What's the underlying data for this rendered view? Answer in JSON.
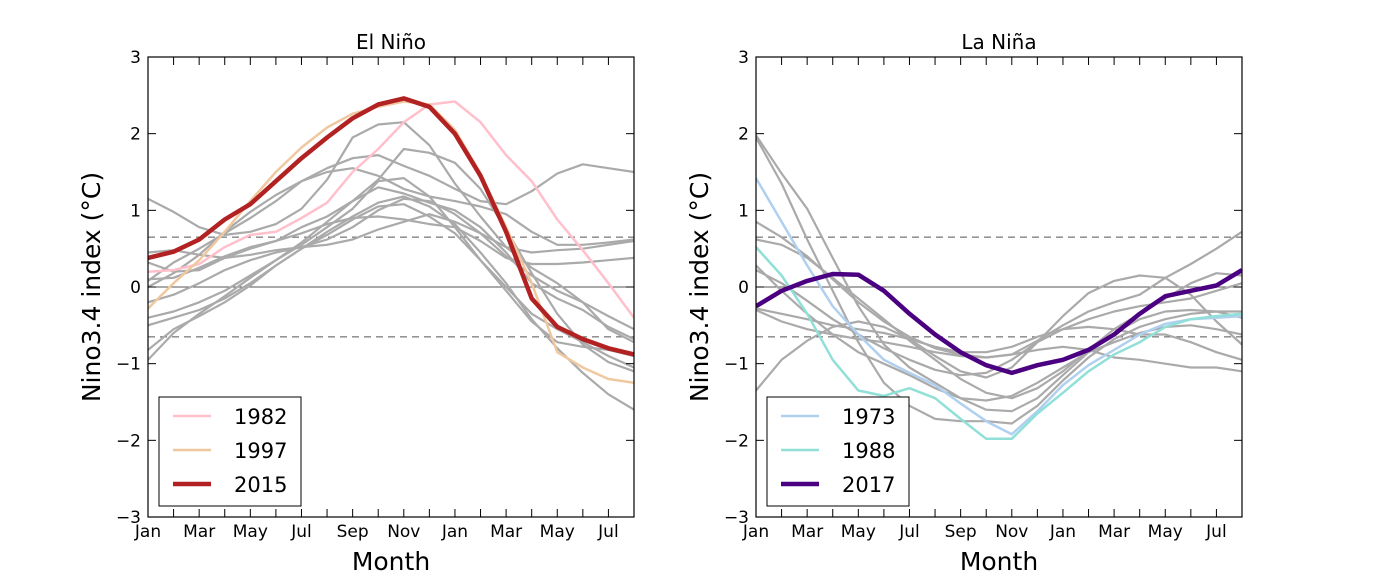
{
  "chart_data": [
    {
      "type": "line",
      "title": "El Niño",
      "xlabel": "Month",
      "ylabel": "Nino3.4 index (°C)",
      "ylim": [
        -3,
        3
      ],
      "xlim": [
        0,
        19
      ],
      "x_tick_labels": [
        "Jan",
        "Mar",
        "May",
        "Jul",
        "Sep",
        "Nov",
        "Jan",
        "Mar",
        "May",
        "Jul"
      ],
      "y_tick_labels": [
        "3",
        "2",
        "1",
        "0",
        "−1",
        "−2",
        "−3"
      ],
      "y_tick_values": [
        3,
        2,
        1,
        0,
        -1,
        -2,
        -3
      ],
      "reference_lines": {
        "zero": 0,
        "thresholds": [
          0.65,
          -0.65
        ]
      },
      "grid": false,
      "legend_position": "lower-left",
      "background_color": "#aaaaaa",
      "series": [
        {
          "name": "1982",
          "color": "#ffc0cb",
          "emphasis": "thin",
          "values": [
            0.2,
            0.22,
            0.3,
            0.52,
            0.68,
            0.72,
            0.9,
            1.1,
            1.5,
            1.8,
            2.15,
            2.38,
            2.42,
            2.15,
            1.72,
            1.38,
            0.88,
            0.48,
            0.05,
            -0.4
          ]
        },
        {
          "name": "1997",
          "color": "#f0c8a0",
          "emphasis": "thin",
          "values": [
            -0.28,
            0.05,
            0.35,
            0.72,
            1.12,
            1.5,
            1.82,
            2.08,
            2.26,
            2.35,
            2.42,
            2.38,
            2.05,
            1.48,
            0.78,
            0.05,
            -0.85,
            -1.05,
            -1.2,
            -1.25
          ]
        },
        {
          "name": "2015",
          "color": "#b22222",
          "emphasis": "bold",
          "values": [
            0.38,
            0.46,
            0.62,
            0.88,
            1.08,
            1.38,
            1.68,
            1.95,
            2.2,
            2.38,
            2.46,
            2.35,
            2.0,
            1.45,
            0.72,
            -0.15,
            -0.52,
            -0.68,
            -0.8,
            -0.88
          ]
        }
      ],
      "background_series": [
        [
          1.15,
          0.98,
          0.78,
          0.68,
          0.72,
          0.82,
          1.02,
          1.4,
          1.95,
          2.12,
          2.15,
          1.85,
          1.35,
          0.92,
          0.52,
          0.25,
          0.05,
          -0.2,
          -0.55,
          -0.72
        ],
        [
          0.08,
          0.32,
          0.5,
          0.7,
          0.9,
          1.12,
          1.38,
          1.55,
          1.68,
          1.72,
          1.58,
          1.45,
          1.28,
          1.12,
          1.08,
          1.25,
          1.48,
          1.6,
          1.55,
          1.5
        ],
        [
          -0.95,
          -0.6,
          -0.35,
          -0.12,
          0.12,
          0.35,
          0.58,
          0.85,
          1.12,
          1.4,
          1.8,
          1.75,
          1.62,
          1.28,
          0.75,
          0.18,
          -0.35,
          -0.75,
          -0.98,
          -1.1
        ],
        [
          0.0,
          0.18,
          0.42,
          0.72,
          0.98,
          1.2,
          1.38,
          1.5,
          1.55,
          1.45,
          1.28,
          1.18,
          1.12,
          1.05,
          0.95,
          0.72,
          0.55,
          0.55,
          0.58,
          0.62
        ],
        [
          -0.5,
          -0.4,
          -0.3,
          -0.15,
          0.05,
          0.28,
          0.5,
          0.72,
          0.92,
          1.1,
          1.18,
          1.05,
          0.82,
          0.45,
          0.05,
          -0.42,
          -0.8,
          -1.12,
          -1.4,
          -1.6
        ],
        [
          -0.2,
          -0.1,
          0.05,
          0.22,
          0.35,
          0.45,
          0.52,
          0.62,
          0.78,
          1.0,
          1.15,
          1.12,
          0.95,
          0.7,
          0.4,
          0.15,
          -0.05,
          -0.2,
          -0.38,
          -0.55
        ],
        [
          0.32,
          0.2,
          0.22,
          0.38,
          0.5,
          0.6,
          0.7,
          0.82,
          0.9,
          0.92,
          0.88,
          0.82,
          0.78,
          0.6,
          0.38,
          0.3,
          0.3,
          0.32,
          0.35,
          0.38
        ],
        [
          -0.4,
          -0.32,
          -0.2,
          -0.05,
          0.15,
          0.35,
          0.55,
          0.78,
          1.02,
          1.38,
          1.42,
          1.18,
          0.78,
          0.35,
          0.0,
          -0.35,
          -0.55,
          -0.72,
          -0.9,
          -1.05
        ],
        [
          0.1,
          0.12,
          0.25,
          0.4,
          0.52,
          0.6,
          0.78,
          0.92,
          1.12,
          1.3,
          1.22,
          1.1,
          1.0,
          0.78,
          0.45,
          0.05,
          -0.15,
          -0.3,
          -0.52,
          -0.68
        ],
        [
          -0.82,
          -0.55,
          -0.38,
          -0.2,
          0.02,
          0.28,
          0.5,
          0.68,
          0.88,
          1.05,
          1.08,
          0.92,
          0.7,
          0.35,
          -0.05,
          -0.45,
          -0.72,
          -0.78,
          -0.82,
          -0.9
        ],
        [
          0.45,
          0.48,
          0.42,
          0.38,
          0.42,
          0.48,
          0.52,
          0.55,
          0.62,
          0.75,
          0.85,
          0.95,
          0.85,
          0.7,
          0.52,
          0.45,
          0.48,
          0.5,
          0.55,
          0.6
        ]
      ]
    },
    {
      "type": "line",
      "title": "La Niña",
      "xlabel": "Month",
      "ylabel": "Nino3.4 index (°C)",
      "ylim": [
        -3,
        3
      ],
      "xlim": [
        0,
        19
      ],
      "x_tick_labels": [
        "Jan",
        "Mar",
        "May",
        "Jul",
        "Sep",
        "Nov",
        "Jan",
        "Mar",
        "May",
        "Jul"
      ],
      "y_tick_labels": [
        "3",
        "2",
        "1",
        "0",
        "−1",
        "−2",
        "−3"
      ],
      "y_tick_values": [
        3,
        2,
        1,
        0,
        -1,
        -2,
        -3
      ],
      "reference_lines": {
        "zero": 0,
        "thresholds": [
          0.65,
          -0.65
        ]
      },
      "grid": false,
      "legend_position": "lower-left",
      "background_color": "#aaaaaa",
      "series": [
        {
          "name": "1973",
          "color": "#b0d0f0",
          "emphasis": "thin",
          "values": [
            1.42,
            0.85,
            0.28,
            -0.25,
            -0.62,
            -0.95,
            -1.12,
            -1.28,
            -1.52,
            -1.75,
            -1.92,
            -1.62,
            -1.28,
            -1.02,
            -0.82,
            -0.62,
            -0.48,
            -0.42,
            -0.4,
            -0.38
          ]
        },
        {
          "name": "1988",
          "color": "#90e0d8",
          "emphasis": "thin",
          "values": [
            0.52,
            0.15,
            -0.35,
            -0.95,
            -1.35,
            -1.42,
            -1.32,
            -1.45,
            -1.72,
            -1.98,
            -1.98,
            -1.65,
            -1.38,
            -1.1,
            -0.88,
            -0.72,
            -0.52,
            -0.42,
            -0.38,
            -0.35
          ]
        },
        {
          "name": "2017",
          "color": "#4b0082",
          "emphasis": "bold",
          "values": [
            -0.25,
            -0.05,
            0.08,
            0.17,
            0.16,
            -0.05,
            -0.35,
            -0.62,
            -0.85,
            -1.02,
            -1.12,
            -1.02,
            -0.95,
            -0.82,
            -0.62,
            -0.35,
            -0.12,
            -0.05,
            0.02,
            0.22
          ]
        }
      ],
      "background_series": [
        [
          1.95,
          1.35,
          0.62,
          -0.05,
          -0.72,
          -1.25,
          -1.55,
          -1.72,
          -1.75,
          -1.75,
          -1.78,
          -1.55,
          -1.22,
          -0.92,
          -0.68,
          -0.52,
          -0.42,
          -0.35,
          -0.32,
          -0.32
        ],
        [
          1.98,
          1.48,
          1.02,
          0.38,
          -0.25,
          -0.75,
          -1.05,
          -1.25,
          -1.45,
          -1.6,
          -1.62,
          -1.45,
          -1.15,
          -0.85,
          -0.6,
          -0.42,
          -0.32,
          -0.3,
          -0.32,
          -0.4
        ],
        [
          0.85,
          0.65,
          0.4,
          0.1,
          -0.2,
          -0.45,
          -0.65,
          -0.8,
          -0.88,
          -0.92,
          -0.88,
          -0.7,
          -0.5,
          -0.32,
          -0.2,
          -0.1,
          0.12,
          0.3,
          0.5,
          0.72
        ],
        [
          0.62,
          0.55,
          0.38,
          0.12,
          -0.15,
          -0.42,
          -0.7,
          -0.95,
          -1.2,
          -1.38,
          -1.45,
          -1.32,
          -1.1,
          -0.82,
          -0.55,
          -0.35,
          -0.15,
          0.05,
          0.18,
          0.15
        ],
        [
          -1.35,
          -0.95,
          -0.7,
          -0.52,
          -0.45,
          -0.52,
          -0.68,
          -0.9,
          -1.1,
          -1.18,
          -1.05,
          -0.72,
          -0.38,
          -0.08,
          0.08,
          0.15,
          0.12,
          -0.1,
          -0.45,
          -0.75
        ],
        [
          -0.28,
          -0.35,
          -0.42,
          -0.5,
          -0.55,
          -0.6,
          -0.68,
          -0.78,
          -0.85,
          -0.85,
          -0.78,
          -0.65,
          -0.55,
          -0.52,
          -0.55,
          -0.62,
          -0.62,
          -0.72,
          -0.85,
          -0.95
        ],
        [
          0.28,
          -0.05,
          -0.35,
          -0.62,
          -0.85,
          -1.0,
          -1.15,
          -1.32,
          -1.45,
          -1.48,
          -1.42,
          -1.25,
          -1.05,
          -0.85,
          -0.72,
          -0.6,
          -0.52,
          -0.5,
          -0.55,
          -0.62
        ],
        [
          -0.3,
          -0.45,
          -0.55,
          -0.62,
          -0.68,
          -0.72,
          -0.78,
          -0.85,
          -0.9,
          -0.92,
          -0.88,
          -0.82,
          -0.78,
          -0.82,
          -0.92,
          -0.95,
          -1.0,
          -1.05,
          -1.05,
          -1.1
        ],
        [
          0.22,
          0.05,
          -0.18,
          -0.42,
          -0.62,
          -0.8,
          -0.95,
          -1.08,
          -1.15,
          -1.12,
          -0.95,
          -0.72,
          -0.55,
          -0.42,
          -0.32,
          -0.25,
          -0.2,
          -0.15,
          -0.05,
          0.05
        ]
      ]
    }
  ]
}
